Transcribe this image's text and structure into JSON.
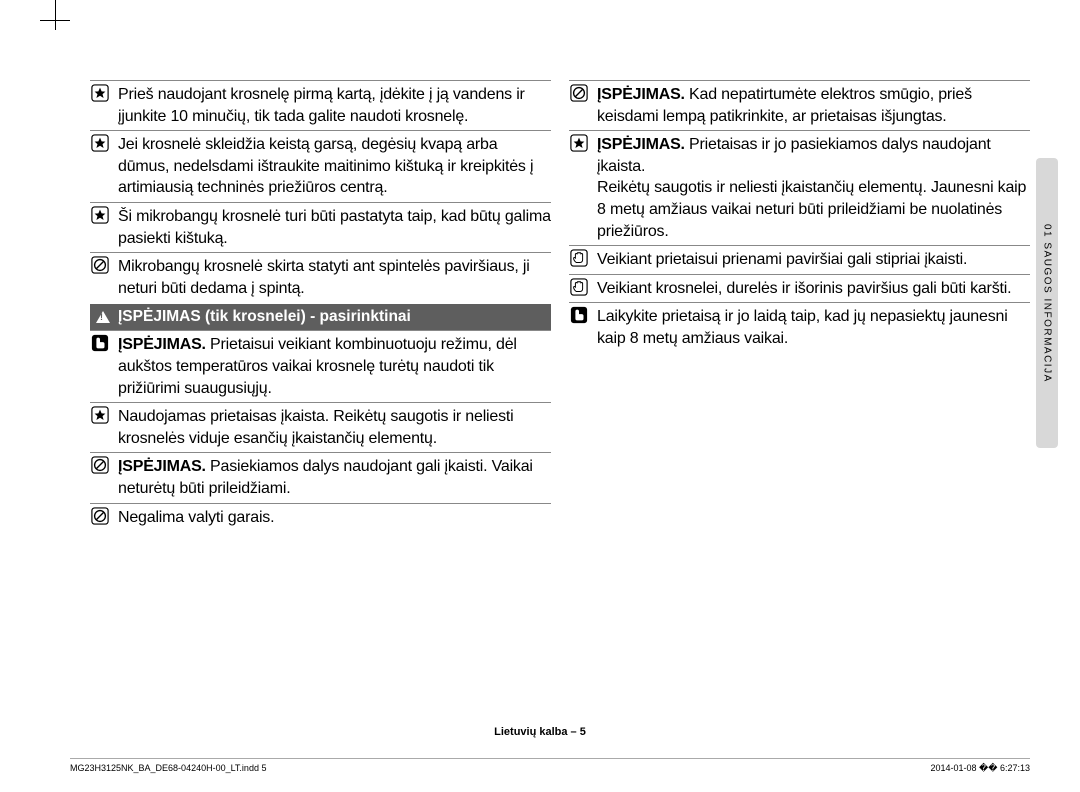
{
  "sideTab": "01  SAUGOS INFORMACIJA",
  "pageFooter": "Lietuvių kalba – 5",
  "printFooterLeft": "MG23H3125NK_BA_DE68-04240H-00_LT.indd   5",
  "printFooterRight": "2014-01-08   �� 6:27:13",
  "sectionHeader": "ĮSPĖJIMAS (tik krosnelei) - pasirinktinai",
  "col1": {
    "items1": [
      {
        "icon": "star",
        "text": "Prieš naudojant krosnelę pirmą kartą, įdėkite į ją vandens ir įjunkite 10 minučių, tik tada galite naudoti krosnelę."
      },
      {
        "icon": "star",
        "text": "Jei krosnelė skleidžia keistą garsą, degėsių kvapą arba dūmus, nedelsdami ištraukite maitinimo kištuką ir kreipkitės į artimiausią techninės priežiūros centrą."
      },
      {
        "icon": "star",
        "text": "Ši mikrobangų krosnelė turi būti pastatyta taip, kad būtų galima pasiekti kištuką."
      },
      {
        "icon": "prohibit",
        "text": "Mikrobangų krosnelė skirta statyti ant spintelės paviršiaus, ji neturi būti dedama į spintą."
      }
    ],
    "items2": [
      {
        "icon": "finger",
        "bold": "ĮSPĖJIMAS.",
        "text": " Prietaisui veikiant kombinuotuoju režimu, dėl aukštos temperatūros vaikai krosnelę turėtų naudoti tik prižiūrimi suaugusiųjų."
      },
      {
        "icon": "star",
        "text": "Naudojamas prietaisas įkaista. Reikėtų saugotis ir neliesti krosnelės viduje esančių įkaistančių elementų."
      },
      {
        "icon": "prohibit",
        "bold": "ĮSPĖJIMAS.",
        "text": " Pasiekiamos dalys naudojant gali įkaisti. Vaikai neturėtų būti prileidžiami."
      },
      {
        "icon": "prohibit",
        "text": "Negalima valyti garais."
      }
    ]
  },
  "col2": {
    "items": [
      {
        "icon": "prohibit",
        "bold": "ĮSPĖJIMAS.",
        "text": " Kad nepatirtumėte elektros smūgio, prieš keisdami lempą patikrinkite, ar prietaisas išjungtas."
      },
      {
        "icon": "star",
        "bold": "ĮSPĖJIMAS.",
        "text": " Prietaisas ir jo pasiekiamos dalys naudojant įkaista.\nReikėtų saugotis ir neliesti įkaistančių elementų. Jaunesni kaip 8 metų amžiaus vaikai neturi būti prileidžiami be nuolatinės priežiūros."
      },
      {
        "icon": "hand",
        "text": "Veikiant prietaisui prienami paviršiai gali stipriai įkaisti."
      },
      {
        "icon": "hand",
        "text": "Veikiant krosnelei, durelės ir išorinis paviršius gali būti karšti."
      },
      {
        "icon": "finger",
        "text": "Laikykite prietaisą ir jo laidą taip, kad jų nepasiektų jaunesni kaip 8 metų amžiaus vaikai."
      }
    ]
  }
}
